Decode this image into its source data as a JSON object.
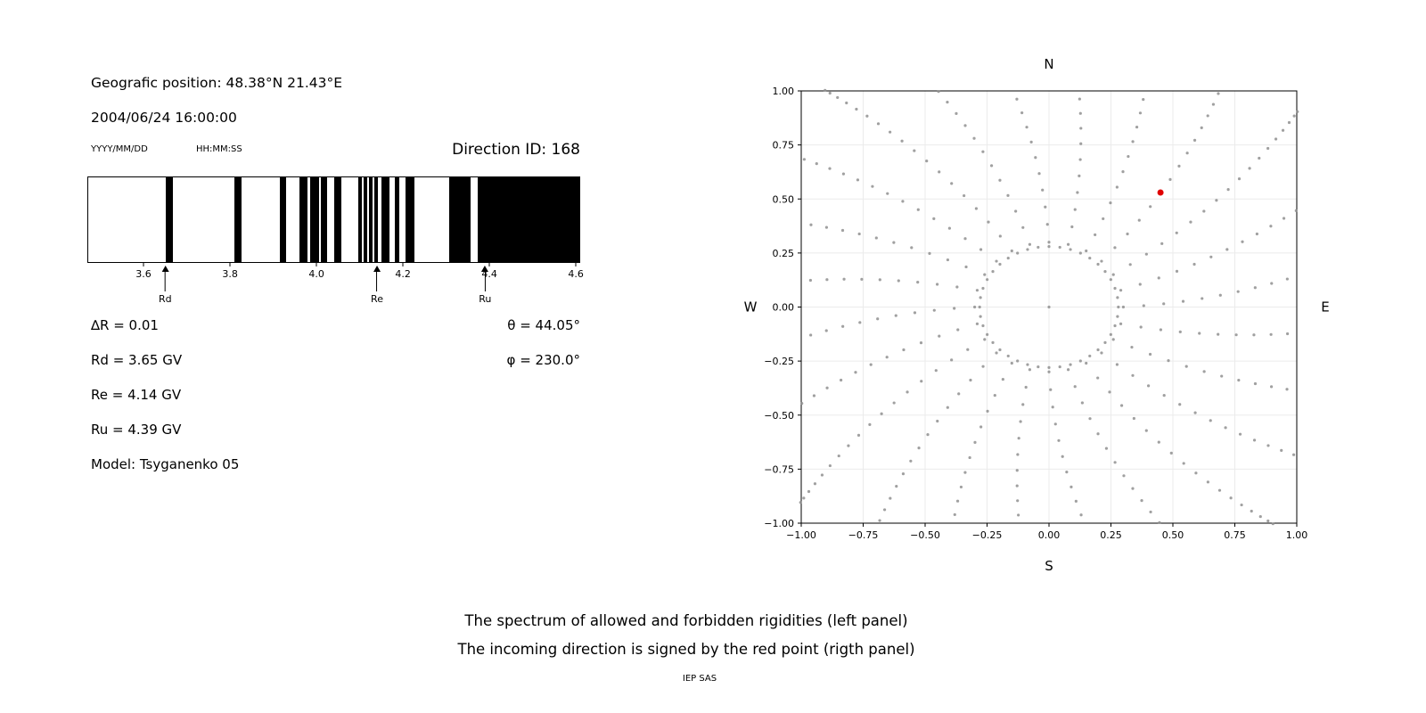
{
  "header": {
    "position_label": "Geografic position: 48.38°N 21.43°E",
    "datetime": "2004/06/24 16:00:00",
    "date_format_hint": "YYYY/MM/DD",
    "time_format_hint": "HH:MM:SS",
    "direction_id_label": "Direction ID: 168"
  },
  "parameters": {
    "delta_r": "∆R = 0.01",
    "rd": "Rd = 3.65 GV",
    "re": "Re = 4.14 GV",
    "ru": "Ru = 4.39 GV",
    "model": "Model: Tsyganenko 05",
    "theta": "θ = 44.05°",
    "phi": "φ = 230.0°"
  },
  "caption": {
    "line1": "The spectrum of allowed and forbidden rigidities (left panel)",
    "line2": "The incoming direction is signed by the red point (rigth panel)",
    "footer": "IEP SAS"
  },
  "chart_data": [
    {
      "type": "bar",
      "subtype": "rigidity-barcode-spectrum",
      "title": "",
      "xlabel": "",
      "xlim": [
        3.47,
        4.61
      ],
      "xticks": [
        "3.6",
        "3.8",
        "4.0",
        "4.2",
        "4.4",
        "4.6"
      ],
      "bar_color": "#000000",
      "background": "#ffffff",
      "allowed_intervals_gv": [
        [
          3.65,
          3.666
        ],
        [
          3.81,
          3.826
        ],
        [
          3.914,
          3.93
        ],
        [
          3.96,
          3.98
        ],
        [
          3.986,
          4.005
        ],
        [
          4.011,
          4.025
        ],
        [
          4.041,
          4.058
        ],
        [
          4.097,
          4.105
        ],
        [
          4.109,
          4.117
        ],
        [
          4.121,
          4.13
        ],
        [
          4.134,
          4.142
        ],
        [
          4.15,
          4.169
        ],
        [
          4.181,
          4.193
        ],
        [
          4.206,
          4.228
        ],
        [
          4.308,
          4.358
        ],
        [
          4.374,
          4.61
        ]
      ],
      "markers": [
        {
          "label": "Rd",
          "value_gv": 3.65
        },
        {
          "label": "Re",
          "value_gv": 4.14
        },
        {
          "label": "Ru",
          "value_gv": 4.39
        }
      ]
    },
    {
      "type": "scatter",
      "title": "",
      "xlabel": "",
      "ylabel": "",
      "xlim": [
        -1,
        1
      ],
      "ylim": [
        -1,
        1
      ],
      "xticks": [
        "−1.00",
        "−0.75",
        "−0.50",
        "−0.25",
        "0.00",
        "0.25",
        "0.50",
        "0.75",
        "1.00"
      ],
      "yticks": [
        "−1.00",
        "−0.75",
        "−0.50",
        "−0.25",
        "0.00",
        "0.25",
        "0.50",
        "0.75",
        "1.00"
      ],
      "grid": true,
      "grid_color": "#ebebeb",
      "compass": {
        "top": "N",
        "bottom": "S",
        "left": "W",
        "right": "E"
      },
      "dot_color": "#8f8f8f",
      "direction_grid": {
        "spoke_count": 24,
        "spoke_start_deg": 0,
        "spoke_step_deg": 15,
        "r_start": 0.3,
        "r_end": 1.35,
        "dots_per_spoke": 18,
        "radial_bunching_exp": 1.35,
        "curvature_rad": 0.2,
        "inner_ring_radius": 0.28,
        "inner_ring_dots": 40,
        "center_dot": true
      },
      "red_point": {
        "x": 0.45,
        "y": 0.53,
        "color": "#e00000"
      }
    }
  ]
}
